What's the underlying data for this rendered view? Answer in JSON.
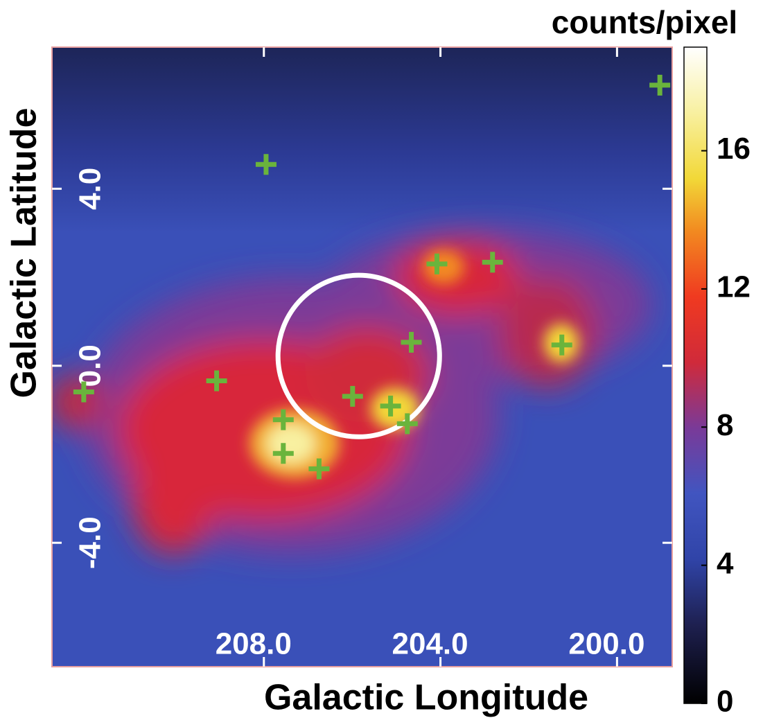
{
  "chart_data": {
    "type": "skymap",
    "title": "counts/pixel",
    "x_label": "Galactic Longitude",
    "y_label": "Galactic Latitude",
    "xlim": [
      212.8,
      198.75
    ],
    "ylim": [
      -6.8,
      7.2
    ],
    "xticks": [
      {
        "value": 208,
        "label": "208.0"
      },
      {
        "value": 204,
        "label": "204.0"
      },
      {
        "value": 200,
        "label": "200.0"
      }
    ],
    "yticks": [
      {
        "value": 4,
        "label": "4.0"
      },
      {
        "value": 0,
        "label": "0.0"
      },
      {
        "value": -4,
        "label": "-4.0"
      }
    ],
    "clim": [
      0,
      19
    ],
    "cticks": [
      0,
      4,
      8,
      12,
      16
    ],
    "sources": {
      "color": "#6ab43c",
      "x": [
        199.03,
        207.95,
        204.08,
        202.82,
        201.25,
        204.66,
        209.07,
        212.08,
        205.99,
        205.13,
        204.75,
        207.56,
        207.56,
        206.75
      ],
      "y": [
        6.34,
        4.55,
        2.3,
        2.34,
        0.47,
        0.53,
        -0.34,
        -0.59,
        -0.69,
        -0.91,
        -1.31,
        -1.22,
        -1.98,
        -2.33
      ]
    },
    "region": {
      "color": "#ffffff",
      "x": 205.85,
      "y": 0.22,
      "radius": 1.83
    }
  }
}
